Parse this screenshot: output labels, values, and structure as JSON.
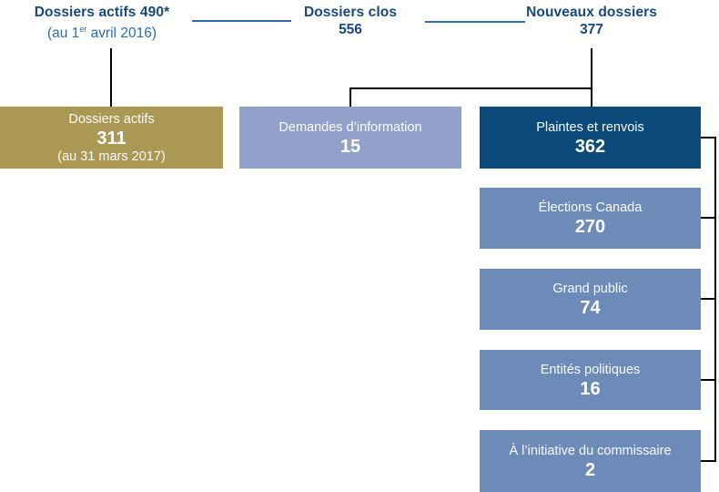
{
  "palette": {
    "title_text": "#17497f",
    "subtitle_text": "#2d6cad",
    "connector_blue": "#2d6cad",
    "connector_black": "#000000",
    "box_gold": "#aa9854",
    "box_periwinkle": "#92a1c9",
    "box_navy": "#0d4a7c",
    "box_medium_blue": "#6d8bb9",
    "box_text": "#ffffff"
  },
  "headers": {
    "actifs": {
      "title": "Dossiers actifs 490*",
      "subtitle_prefix": "(au 1",
      "subtitle_sup": "er",
      "subtitle_suffix": " avril 2016)"
    },
    "clos": {
      "title": "Dossiers clos",
      "value": "556"
    },
    "nouveaux": {
      "title": "Nouveaux dossiers",
      "value": "377"
    }
  },
  "boxes": {
    "actifs": {
      "label": "Dossiers actifs",
      "value": "311",
      "note": "(au 31 mars 2017)"
    },
    "demandes": {
      "label": "Demandes d’information",
      "value": "15"
    },
    "plaintes": {
      "label": "Plaintes et renvois",
      "value": "362"
    },
    "sources": [
      {
        "label": "Élections Canada",
        "value": "270"
      },
      {
        "label": "Grand public",
        "value": "74"
      },
      {
        "label": "Entités politiques",
        "value": "16"
      },
      {
        "label": "À l’initiative du commissaire",
        "value": "2"
      }
    ]
  }
}
